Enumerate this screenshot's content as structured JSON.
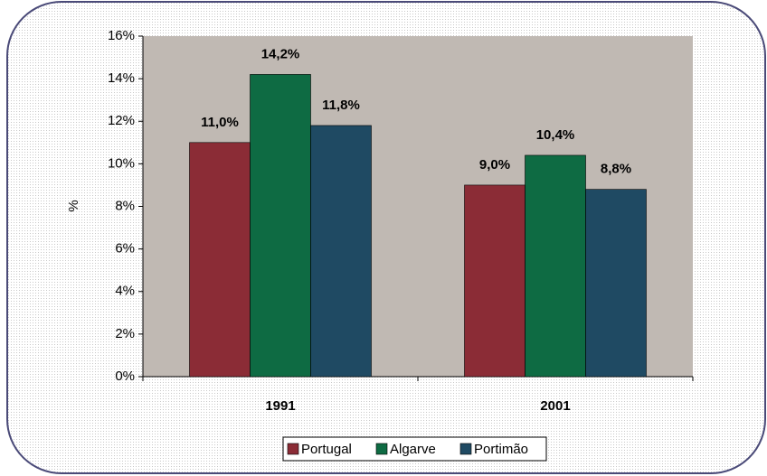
{
  "chart_data": {
    "type": "bar",
    "y_label": "%",
    "categories": [
      "1991",
      "2001"
    ],
    "series": [
      {
        "name": "Portugal",
        "color": "#8b2c36",
        "values": [
          11.0,
          9.0
        ],
        "value_labels": [
          "11,0%",
          "9,0%"
        ]
      },
      {
        "name": "Algarve",
        "color": "#0e6b43",
        "values": [
          14.2,
          10.4
        ],
        "value_labels": [
          "14,2%",
          "10,4%"
        ]
      },
      {
        "name": "Portimão",
        "color": "#1f4a63",
        "values": [
          11.8,
          8.8
        ],
        "value_labels": [
          "11,8%",
          "8,8%"
        ]
      }
    ],
    "ylim": [
      0,
      16
    ],
    "yticks": [
      {
        "value": 0,
        "label": "0%"
      },
      {
        "value": 2,
        "label": "2%"
      },
      {
        "value": 4,
        "label": "4%"
      },
      {
        "value": 6,
        "label": "6%"
      },
      {
        "value": 8,
        "label": "8%"
      },
      {
        "value": 10,
        "label": "10%"
      },
      {
        "value": 12,
        "label": "12%"
      },
      {
        "value": 14,
        "label": "14%"
      },
      {
        "value": 16,
        "label": "16%"
      }
    ],
    "legend": "bottom"
  }
}
